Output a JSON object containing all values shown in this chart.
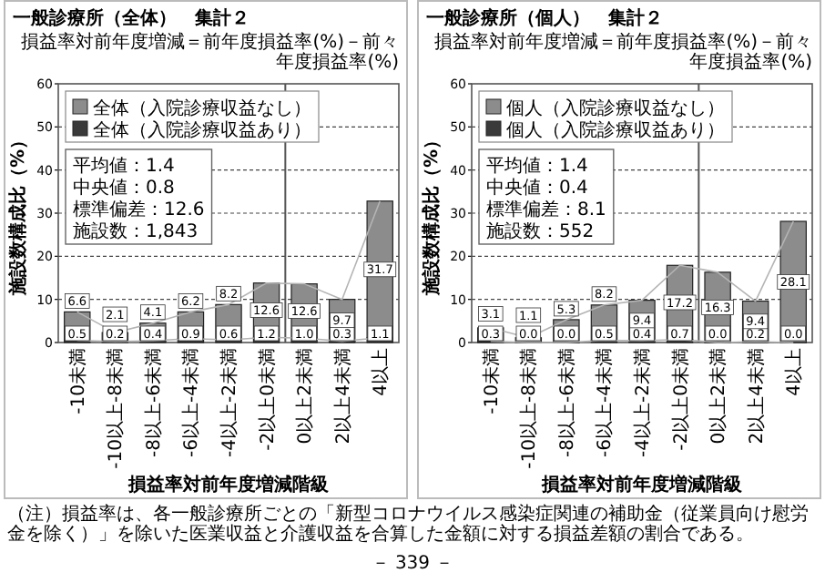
{
  "chart_data": [
    {
      "type": "bar",
      "stacked": true,
      "title": "一般診療所（全体）　集計２",
      "subtitle": "損益率対前年度増減＝前年度損益率(%)－前々年度損益率(%)",
      "xlabel": "損益率対前年度増減階級",
      "ylabel": "施設数構成比（%）",
      "categories": [
        "-10未満",
        "-10以上-8未満",
        "-8以上-6未満",
        "-6以上-4未満",
        "-4以上-2未満",
        "-2以上0未満",
        "0以上2未満",
        "2以上4未満",
        "4以上"
      ],
      "series": [
        {
          "name": "全体（入院診療収益あり）",
          "color": "#3a3a3a",
          "values": [
            0.5,
            0.2,
            0.4,
            0.9,
            0.6,
            1.2,
            1.0,
            0.3,
            1.1
          ],
          "value_labels": [
            "0.5",
            "0.2",
            "0.4",
            "0.9",
            "0.6",
            "1.2",
            "1.0",
            "0.3",
            "1.1"
          ]
        },
        {
          "name": "全体（入院診療収益なし）",
          "color": "#8c8c8c",
          "values": [
            6.6,
            2.1,
            4.1,
            6.2,
            8.2,
            12.6,
            12.6,
            9.7,
            31.7
          ],
          "value_labels": [
            "6.6",
            "2.1",
            "4.1",
            "6.2",
            "8.2",
            "12.6",
            "12.6",
            "9.7",
            "31.7"
          ]
        },
        {
          "type": "line",
          "color": "#b4b4b4",
          "values": [
            7.1,
            2.3,
            4.5,
            7.1,
            8.8,
            13.8,
            13.6,
            10.0,
            32.8
          ]
        },
        {
          "type": "line",
          "color": "#b4b4b4",
          "values": [
            0.5,
            0.2,
            0.4,
            0.9,
            0.6,
            1.2,
            1.0,
            0.3,
            1.1
          ]
        }
      ],
      "ylim": [
        0,
        60
      ],
      "yticks": [
        0,
        10,
        20,
        30,
        40,
        50,
        60
      ],
      "grid": "y",
      "legend": "top left",
      "ref_lines": [
        {
          "axis": "x",
          "value": "0以上2未満",
          "color": "#555555"
        }
      ],
      "annotations": [
        "平均値：1.4",
        "中央値：0.8",
        "標準偏差：12.6",
        "施設数：1,843",
        "（注）損益率は、各一般診療所ごとの「新型コロナウイルス感染症関連の補助金（従業員向け慰労金を除く）」を除いた医業収益と介護収益を合算した金額に対する損益差額の割合である。"
      ]
    },
    {
      "type": "bar",
      "stacked": true,
      "title": "一般診療所（個人）　集計２",
      "subtitle": "損益率対前年度増減＝前年度損益率(%)－前々年度損益率(%)",
      "xlabel": "損益率対前年度増減階級",
      "ylabel": "施設数構成比（%）",
      "categories": [
        "-10未満",
        "-10以上-8未満",
        "-8以上-6未満",
        "-6以上-4未満",
        "-4以上-2未満",
        "-2以上0未満",
        "0以上2未満",
        "2以上4未満",
        "4以上"
      ],
      "series": [
        {
          "name": "個人（入院診療収益あり）",
          "color": "#3a3a3a",
          "values": [
            0.3,
            0.0,
            0.0,
            0.5,
            0.4,
            0.7,
            0.0,
            0.2,
            0.0
          ],
          "value_labels": [
            "0.3",
            "0.0",
            "0.0",
            "0.5",
            "0.4",
            "0.7",
            "0.0",
            "0.2",
            "0.0"
          ]
        },
        {
          "name": "個人（入院診療収益なし）",
          "color": "#8c8c8c",
          "values": [
            3.1,
            1.1,
            5.3,
            8.2,
            9.4,
            17.2,
            16.3,
            9.4,
            28.1
          ],
          "value_labels": [
            "3.1",
            "1.1",
            "5.3",
            "8.2",
            "9.4",
            "17.2",
            "16.3",
            "9.4",
            "28.1"
          ]
        },
        {
          "type": "line",
          "color": "#b4b4b4",
          "values": [
            3.4,
            1.1,
            5.3,
            8.7,
            9.8,
            17.9,
            16.3,
            9.6,
            28.1
          ]
        },
        {
          "type": "line",
          "color": "#b4b4b4",
          "values": [
            0.3,
            0.0,
            0.0,
            0.5,
            0.4,
            0.7,
            0.0,
            0.2,
            0.0
          ]
        }
      ],
      "ylim": [
        0,
        60
      ],
      "yticks": [
        0,
        10,
        20,
        30,
        40,
        50,
        60
      ],
      "grid": "y",
      "legend": "top left",
      "ref_lines": [
        {
          "axis": "x",
          "value": "0以上2未満",
          "color": "#555555"
        }
      ],
      "annotations": [
        "平均値：1.4",
        "中央値：0.4",
        "標準偏差：8.1",
        "施設数：552",
        "－ 339 －"
      ]
    }
  ]
}
